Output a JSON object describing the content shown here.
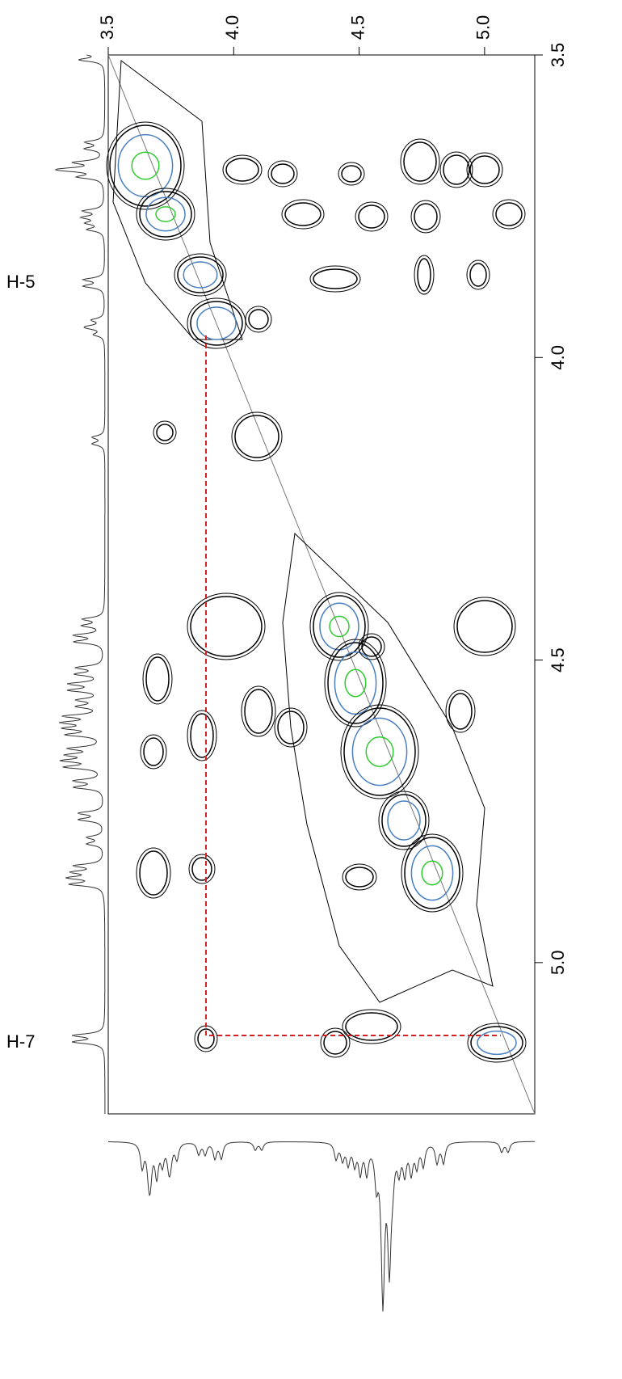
{
  "chart_data": {
    "type": "contour",
    "xlim": [
      3.5,
      5.2
    ],
    "xticks": [
      3.5,
      {
        "value": 4,
        "label": "4.0"
      },
      4.5,
      {
        "value": 5,
        "label": "5.0"
      }
    ],
    "ylim": [
      3.5,
      5.25
    ],
    "yticks": [
      3.5,
      {
        "value": 4,
        "label": "4.0"
      },
      4.5,
      {
        "value": 5,
        "label": "5.0"
      }
    ],
    "annotations": [
      "H-5",
      "H-7"
    ]
  }
}
